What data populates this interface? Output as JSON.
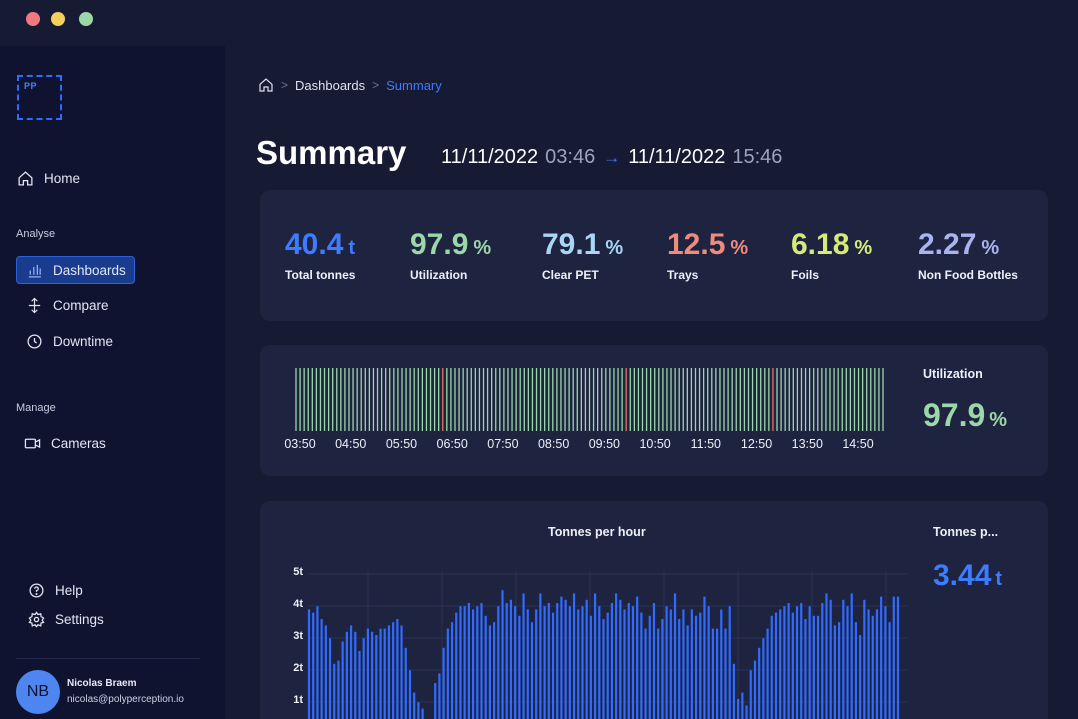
{
  "sidebar": {
    "logo_text": "PP",
    "home": "Home",
    "analyse_label": "Analyse",
    "dashboards": "Dashboards",
    "compare": "Compare",
    "downtime": "Downtime",
    "manage_label": "Manage",
    "cameras": "Cameras",
    "help": "Help",
    "settings": "Settings",
    "user": {
      "initials": "NB",
      "name": "Nicolas Braem",
      "email": "nicolas@polyperception.io"
    }
  },
  "breadcrumb": {
    "parent": "Dashboards",
    "current": "Summary"
  },
  "header": {
    "title": "Summary",
    "start_date": "11/11/2022",
    "start_time": "03:46",
    "end_date": "11/11/2022",
    "end_time": "15:46"
  },
  "kpis": [
    {
      "value": "40.4",
      "unit": "t",
      "label": "Total tonnes",
      "color": "#3d7bff"
    },
    {
      "value": "97.9",
      "unit": "%",
      "label": "Utilization",
      "color": "#9bd7a8"
    },
    {
      "value": "79.1",
      "unit": "%",
      "label": "Clear PET",
      "color": "#a9d6f4"
    },
    {
      "value": "12.5",
      "unit": "%",
      "label": "Trays",
      "color": "#f08a7c"
    },
    {
      "value": "6.18",
      "unit": "%",
      "label": "Foils",
      "color": "#d6ea7a"
    },
    {
      "value": "2.27",
      "unit": "%",
      "label": "Non Food Bottles",
      "color": "#a9b4ef"
    }
  ],
  "utilization": {
    "title": "Utilization",
    "value": "97.9",
    "unit": "%",
    "tick_labels": [
      "03:50",
      "04:50",
      "05:50",
      "06:50",
      "07:50",
      "08:50",
      "09:50",
      "10:50",
      "11:50",
      "12:50",
      "13:50",
      "14:50"
    ],
    "bar_count": 145,
    "down_bars": [
      36,
      81,
      117
    ],
    "up_color": "#9bd7a8",
    "down_color": "#e8705f"
  },
  "tonnes_per_hour": {
    "title": "Tonnes per hour",
    "side_title": "Tonnes p...",
    "side_value": "3.44",
    "side_unit": "t",
    "chart_data": {
      "type": "bar",
      "y_ticks": [
        "5t",
        "4t",
        "3t",
        "2t",
        "1t"
      ],
      "ylim": [
        0,
        5
      ],
      "bar_color": "#2f6bff",
      "values": [
        3.8,
        3.7,
        3.9,
        3.5,
        3.3,
        2.9,
        2.1,
        2.2,
        2.8,
        3.1,
        3.3,
        3.1,
        2.5,
        2.9,
        3.2,
        3.1,
        3.0,
        3.2,
        3.2,
        3.3,
        3.4,
        3.5,
        3.3,
        2.6,
        1.9,
        1.2,
        0.9,
        0.7,
        0.3,
        0.2,
        1.5,
        1.8,
        2.6,
        3.2,
        3.4,
        3.7,
        3.9,
        3.9,
        4.0,
        3.8,
        3.9,
        4.0,
        3.6,
        3.3,
        3.4,
        3.9,
        4.4,
        4.0,
        4.1,
        3.9,
        3.6,
        4.3,
        3.8,
        3.4,
        3.8,
        4.3,
        3.9,
        4.0,
        3.7,
        4.0,
        4.2,
        4.1,
        3.9,
        4.3,
        3.8,
        3.9,
        4.1,
        3.6,
        4.3,
        3.9,
        3.5,
        3.7,
        4.0,
        4.3,
        4.1,
        3.8,
        4.0,
        3.9,
        4.2,
        3.7,
        3.2,
        3.6,
        4.0,
        3.2,
        3.5,
        3.9,
        3.8,
        4.3,
        3.5,
        3.8,
        3.3,
        3.8,
        3.6,
        3.7,
        4.2,
        3.9,
        3.2,
        3.2,
        3.8,
        3.2,
        3.9,
        2.1,
        1.0,
        1.2,
        0.8,
        1.9,
        2.2,
        2.6,
        2.9,
        3.2,
        3.6,
        3.7,
        3.8,
        3.9,
        4.0,
        3.7,
        3.9,
        4.0,
        3.5,
        3.9,
        3.6,
        3.6,
        4.0,
        4.3,
        4.1,
        3.3,
        3.4,
        4.1,
        3.9,
        4.3,
        3.4,
        3.0,
        4.1,
        3.8,
        3.6,
        3.8,
        4.2,
        3.9,
        3.4,
        4.2,
        4.2
      ]
    }
  }
}
